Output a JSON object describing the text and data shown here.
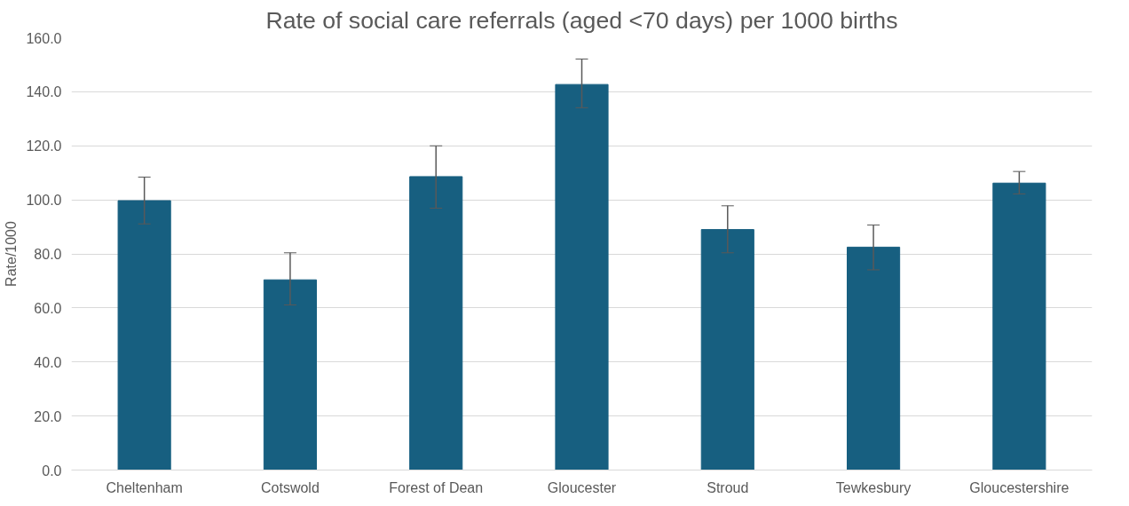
{
  "chart_data": {
    "type": "bar",
    "title": "Rate of social care referrals (aged <70 days) per 1000 births",
    "ylabel": "Rate/1000",
    "categories": [
      "Cheltenham",
      "Cotswold",
      "Forest of Dean",
      "Gloucester",
      "Stroud",
      "Tewkesbury",
      "Gloucestershire"
    ],
    "values": [
      99.7,
      70.4,
      108.6,
      142.7,
      89.0,
      82.5,
      106.2
    ],
    "errors": [
      [
        91.1,
        108.4
      ],
      [
        61.1,
        80.4
      ],
      [
        96.9,
        120.0
      ],
      [
        134.1,
        152.1
      ],
      [
        80.4,
        97.8
      ],
      [
        74.1,
        90.7
      ],
      [
        102.2,
        110.5
      ]
    ],
    "color": "#175f80",
    "ylim": [
      0,
      160
    ],
    "yticks": [
      {
        "value": 0,
        "label": "0.0"
      },
      {
        "value": 20,
        "label": "20.0"
      },
      {
        "value": 40,
        "label": "40.0"
      },
      {
        "value": 60,
        "label": "60.0"
      },
      {
        "value": 80,
        "label": "80.0"
      },
      {
        "value": 100,
        "label": "100.0"
      },
      {
        "value": 120,
        "label": "120.0"
      },
      {
        "value": 140,
        "label": "140.0"
      },
      {
        "value": 160,
        "label": "160.0"
      }
    ],
    "grid": "y"
  }
}
